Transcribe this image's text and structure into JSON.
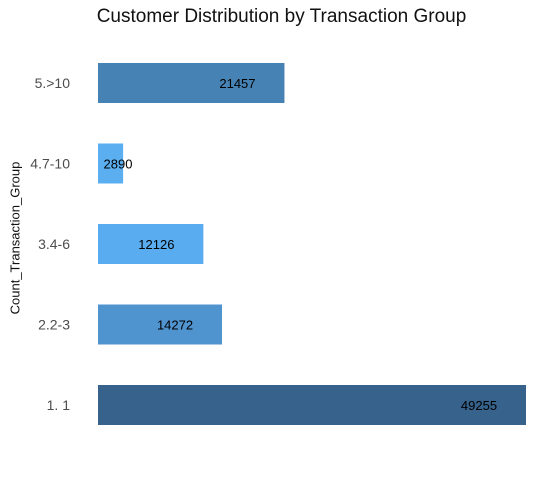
{
  "chart_data": {
    "type": "bar",
    "orientation": "horizontal",
    "title": "Customer Distribution by Transaction Group",
    "ylabel": "Count_Transaction_Group",
    "xlabel": "",
    "categories": [
      "5.>10",
      "4.7-10",
      "3.4-6",
      "2.2-3",
      "1. 1"
    ],
    "values": [
      21457,
      2890,
      12126,
      14272,
      49255
    ],
    "colors": [
      "#4682b4",
      "#5baff0",
      "#5aacf0",
      "#4f93cf",
      "#36628b"
    ],
    "xlim": [
      0,
      49255
    ],
    "grid": false,
    "legend": false
  }
}
